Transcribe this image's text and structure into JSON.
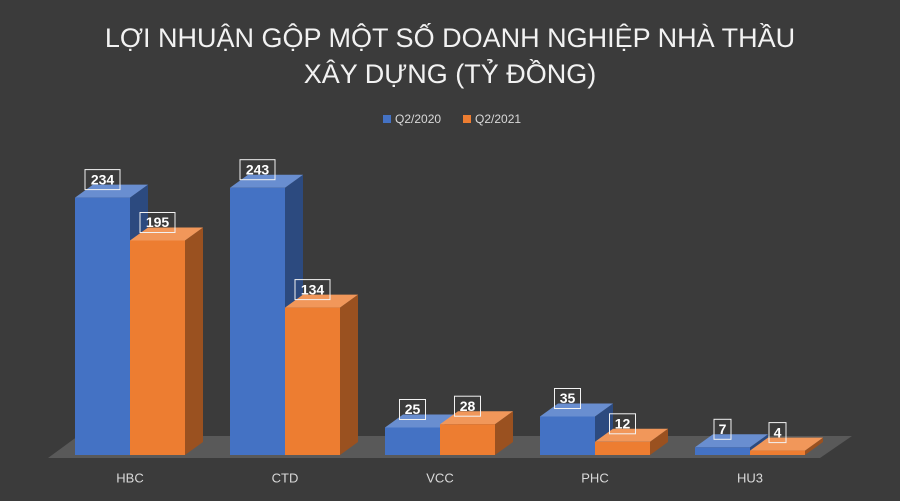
{
  "chart_data": {
    "type": "bar3d",
    "title": "LỢI NHUẬN GỘP MỘT SỐ DOANH NGHIỆP NHÀ THẦU XÂY DỰNG (TỶ ĐỒNG)",
    "categories": [
      "HBC",
      "CTD",
      "VCC",
      "PHC",
      "HU3"
    ],
    "series": [
      {
        "name": "Q2/2020",
        "color": "#4472c4",
        "values": [
          234,
          243,
          25,
          35,
          7
        ]
      },
      {
        "name": "Q2/2021",
        "color": "#ed7d31",
        "values": [
          195,
          134,
          28,
          12,
          4
        ]
      }
    ],
    "legend": "top"
  }
}
